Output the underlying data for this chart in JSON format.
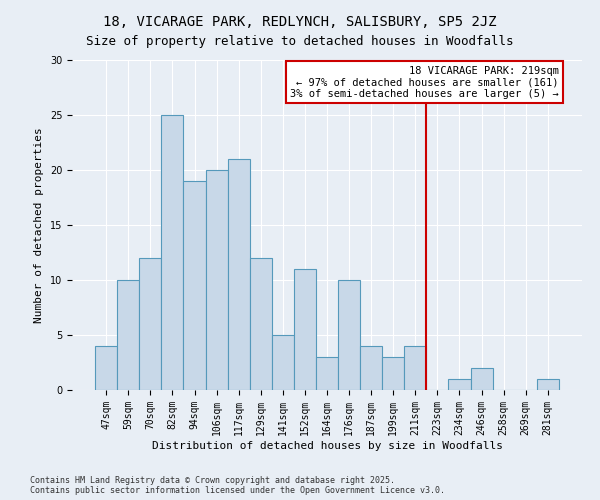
{
  "title_line1": "18, VICARAGE PARK, REDLYNCH, SALISBURY, SP5 2JZ",
  "title_line2": "Size of property relative to detached houses in Woodfalls",
  "xlabel": "Distribution of detached houses by size in Woodfalls",
  "ylabel": "Number of detached properties",
  "categories": [
    "47sqm",
    "59sqm",
    "70sqm",
    "82sqm",
    "94sqm",
    "106sqm",
    "117sqm",
    "129sqm",
    "141sqm",
    "152sqm",
    "164sqm",
    "176sqm",
    "187sqm",
    "199sqm",
    "211sqm",
    "223sqm",
    "234sqm",
    "246sqm",
    "258sqm",
    "269sqm",
    "281sqm"
  ],
  "values": [
    4,
    10,
    12,
    25,
    19,
    20,
    21,
    12,
    5,
    11,
    3,
    10,
    4,
    3,
    4,
    0,
    1,
    2,
    0,
    0,
    1
  ],
  "bar_color": "#c8d8e8",
  "bar_edge_color": "#5599bb",
  "vline_x": 14.5,
  "vline_color": "#cc0000",
  "annotation_text": "18 VICARAGE PARK: 219sqm\n← 97% of detached houses are smaller (161)\n3% of semi-detached houses are larger (5) →",
  "annotation_box_color": "#ffffff",
  "annotation_box_edge_color": "#cc0000",
  "ylim": [
    0,
    30
  ],
  "yticks": [
    0,
    5,
    10,
    15,
    20,
    25,
    30
  ],
  "background_color": "#e8eef5",
  "footer_text": "Contains HM Land Registry data © Crown copyright and database right 2025.\nContains public sector information licensed under the Open Government Licence v3.0.",
  "title_fontsize": 10,
  "subtitle_fontsize": 9,
  "xlabel_fontsize": 8,
  "ylabel_fontsize": 8,
  "tick_fontsize": 7,
  "annotation_fontsize": 7.5,
  "footer_fontsize": 6
}
